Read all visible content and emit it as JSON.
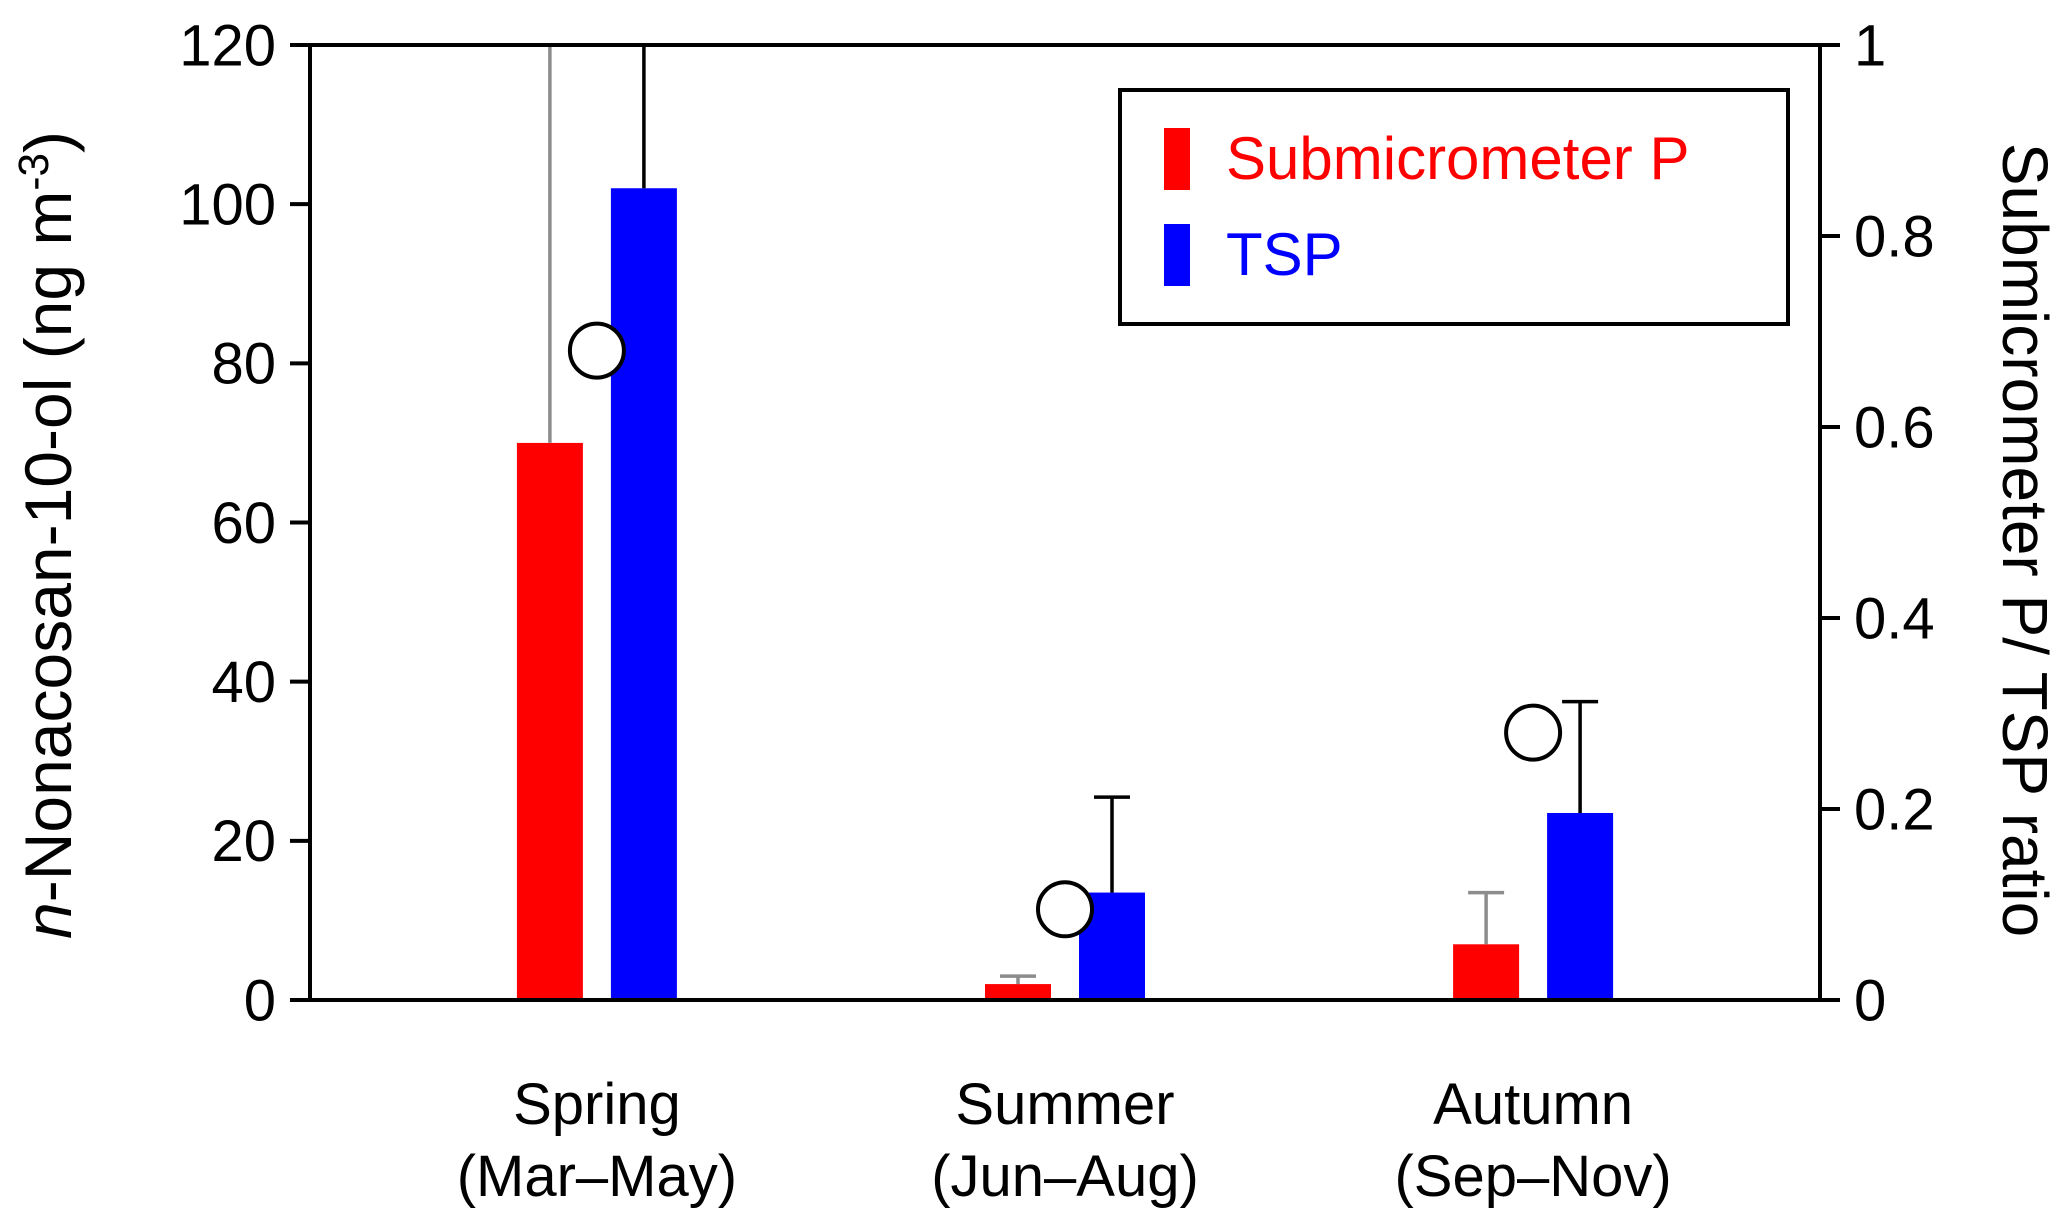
{
  "chart_data": {
    "type": "bar",
    "title": "",
    "grid": false,
    "legend_position": "top-right-inside",
    "categories": [
      {
        "line1": "Spring",
        "line2": "(Mar–May)"
      },
      {
        "line1": "Summer",
        "line2": "(Jun–Aug)"
      },
      {
        "line1": "Autumn",
        "line2": "(Sep–Nov)"
      }
    ],
    "series": [
      {
        "name": "Submicrometer P",
        "color": "#FF0000",
        "error_color": "#8C8C8C",
        "values": [
          70,
          2,
          7
        ],
        "errors": [
          55,
          1,
          6.5
        ]
      },
      {
        "name": "TSP",
        "color": "#0000FF",
        "error_color": "#000000",
        "values": [
          102,
          13.5,
          23.5
        ],
        "errors": [
          35,
          12,
          14
        ]
      }
    ],
    "ratio_series": {
      "name": "Submicrometer P/ TSP ratio",
      "marker": "open-circle",
      "marker_fill": "#FFFFFF",
      "marker_stroke": "#000000",
      "values": [
        0.68,
        0.095,
        0.28
      ]
    },
    "left_axis": {
      "label_italic": "n",
      "label_main": "-Nonacosan-10-ol (ng m",
      "label_sup": "-3",
      "label_close": ")",
      "min": 0,
      "max": 120,
      "ticks": [
        0,
        20,
        40,
        60,
        80,
        100,
        120
      ]
    },
    "right_axis": {
      "label": "Submicrometer P/ TSP ratio",
      "min": 0,
      "max": 1,
      "tick_values": [
        0,
        0.2,
        0.4,
        0.6,
        0.8,
        1
      ],
      "tick_labels": [
        "0",
        "0.2",
        "0.4",
        "0.6",
        "0.8",
        "1"
      ]
    },
    "legend": {
      "items": [
        {
          "label": "Submicrometer P",
          "color": "#FF0000"
        },
        {
          "label": "TSP",
          "color": "#0000FF"
        }
      ]
    }
  }
}
